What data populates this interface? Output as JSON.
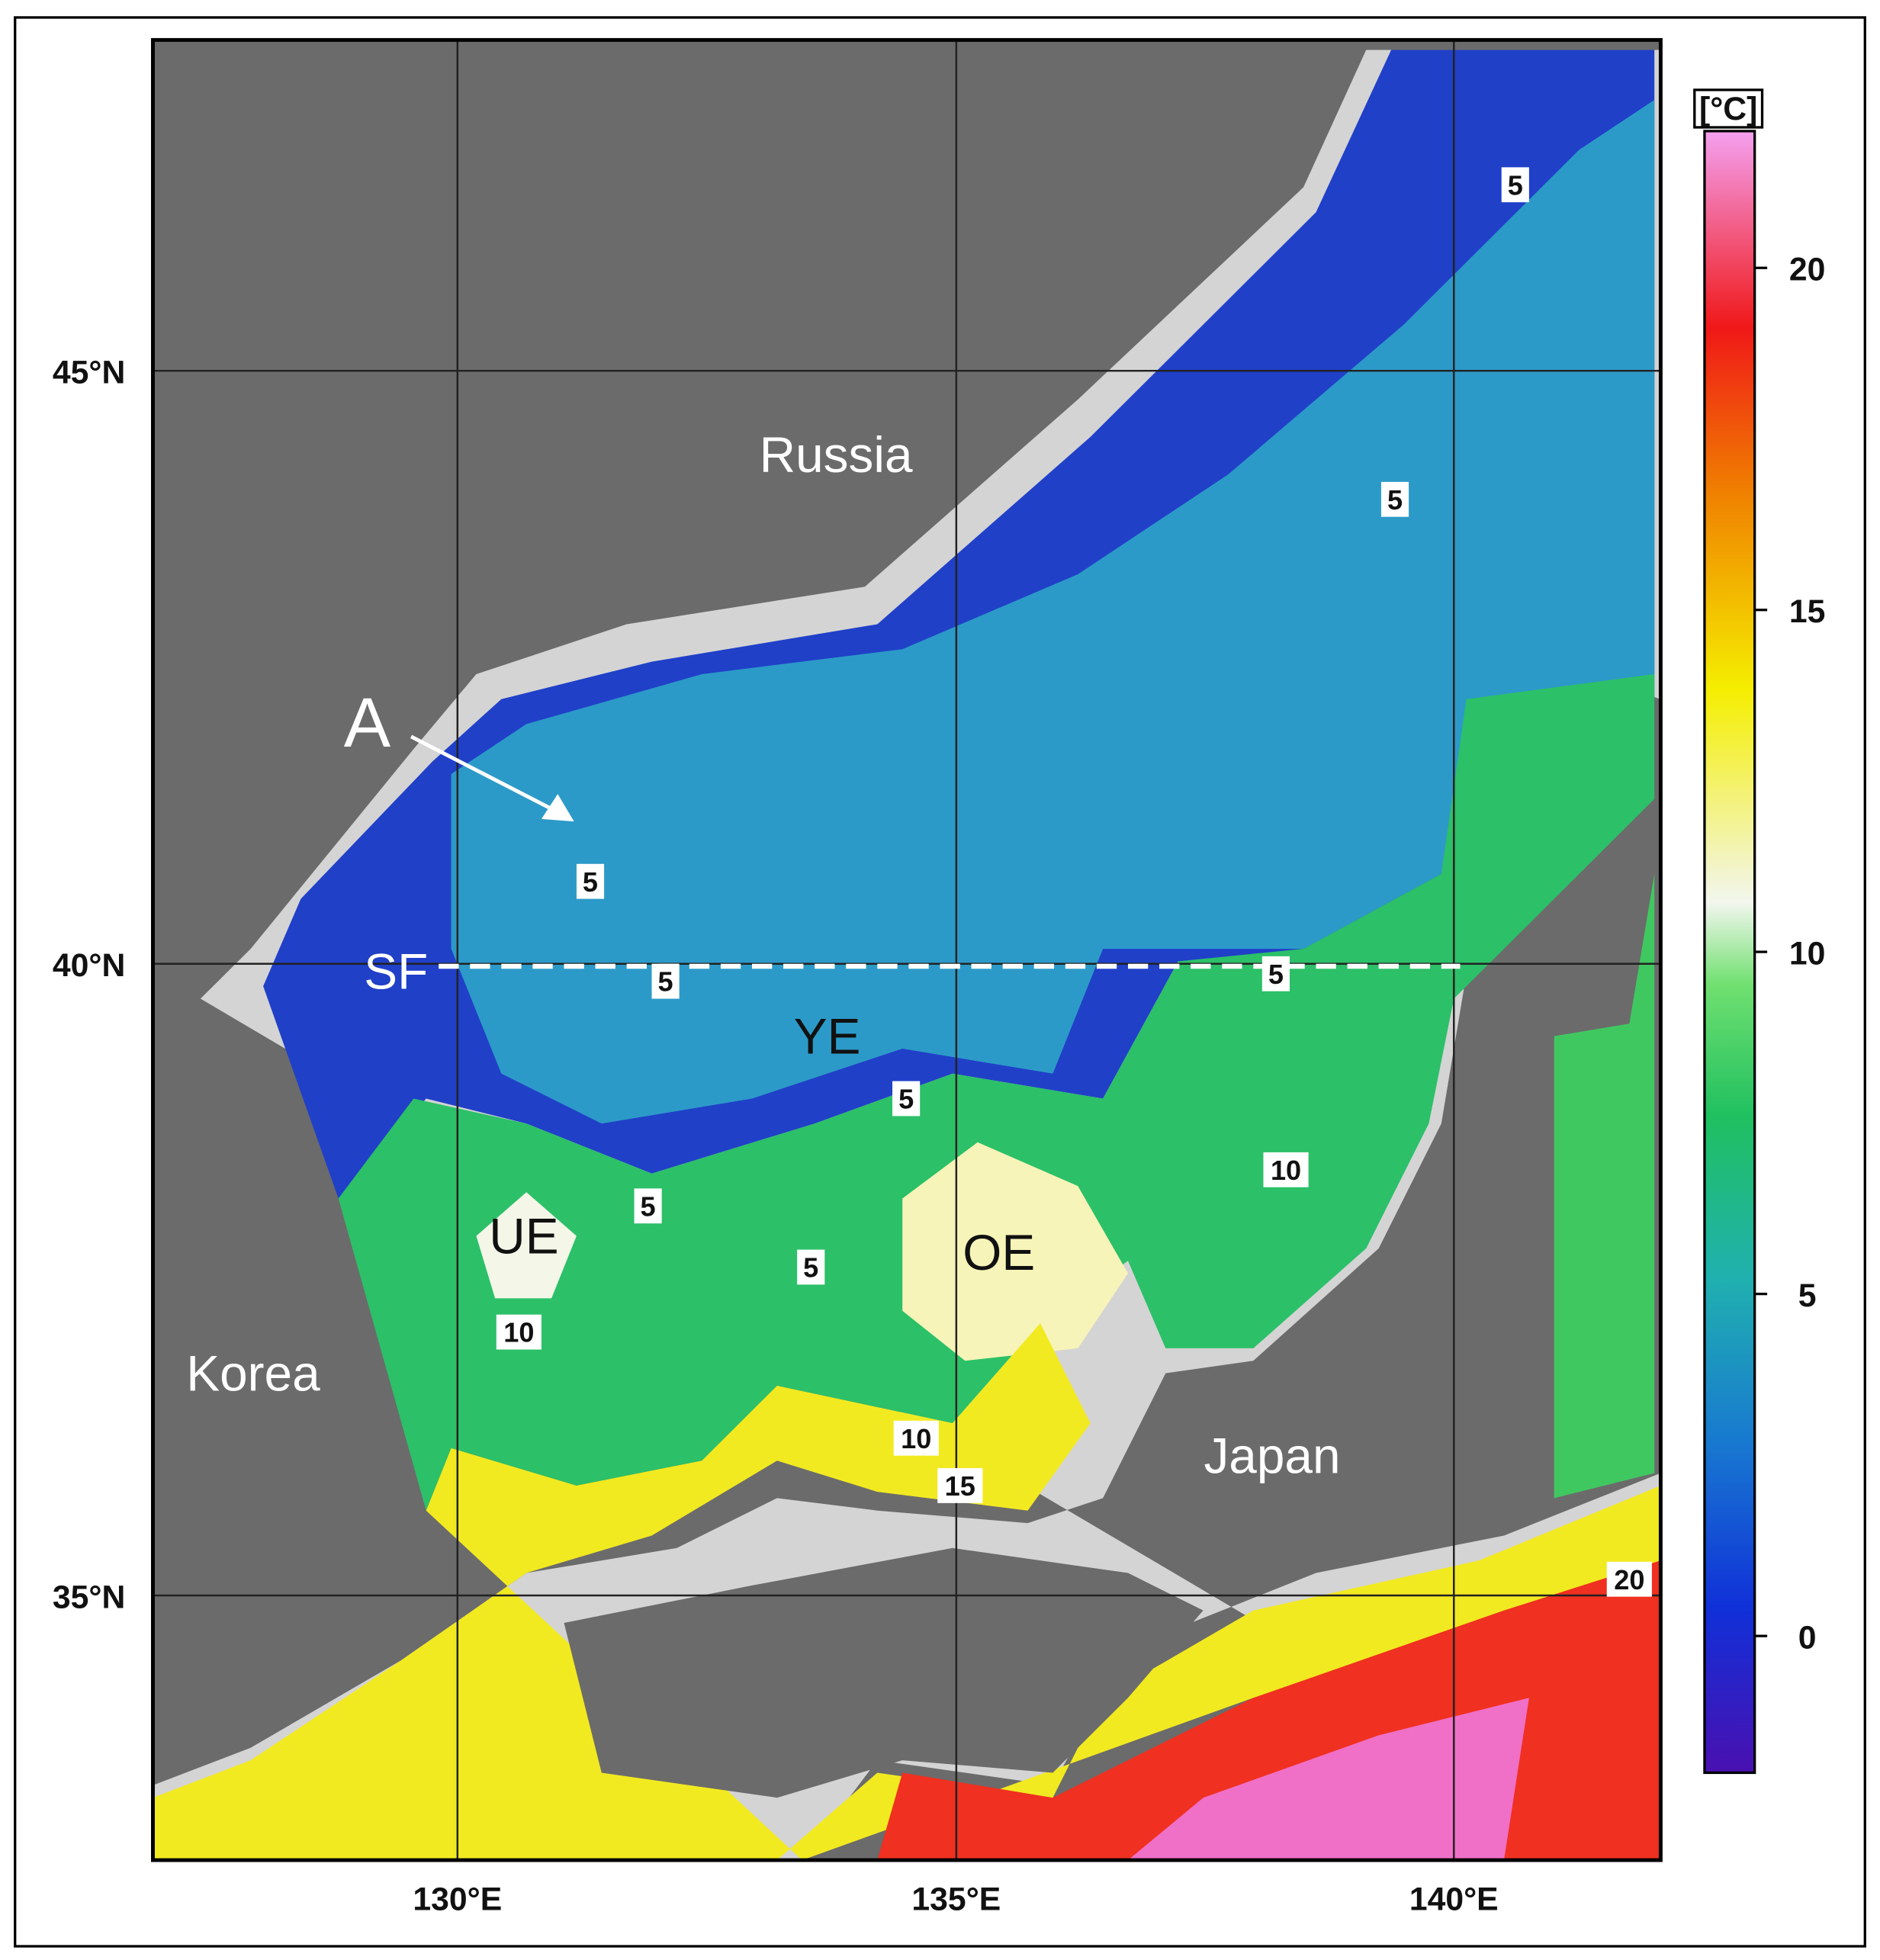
{
  "map": {
    "lat_labels": [
      "45°N",
      "40°N",
      "35°N"
    ],
    "lon_labels": [
      "130°E",
      "135°E",
      "140°E"
    ],
    "place_labels": [
      "Russia",
      "Korea",
      "Japan"
    ],
    "feature_labels": [
      "A",
      "SF",
      "YE",
      "UE",
      "OE"
    ],
    "contour_labels": [
      5,
      5,
      5,
      5,
      5,
      5,
      5,
      5,
      10,
      10,
      10,
      15,
      20
    ]
  },
  "colorbar": {
    "unit": "[°C]",
    "lim": [
      -2,
      22
    ],
    "ticks": [
      0,
      5,
      10,
      15,
      20
    ]
  }
}
